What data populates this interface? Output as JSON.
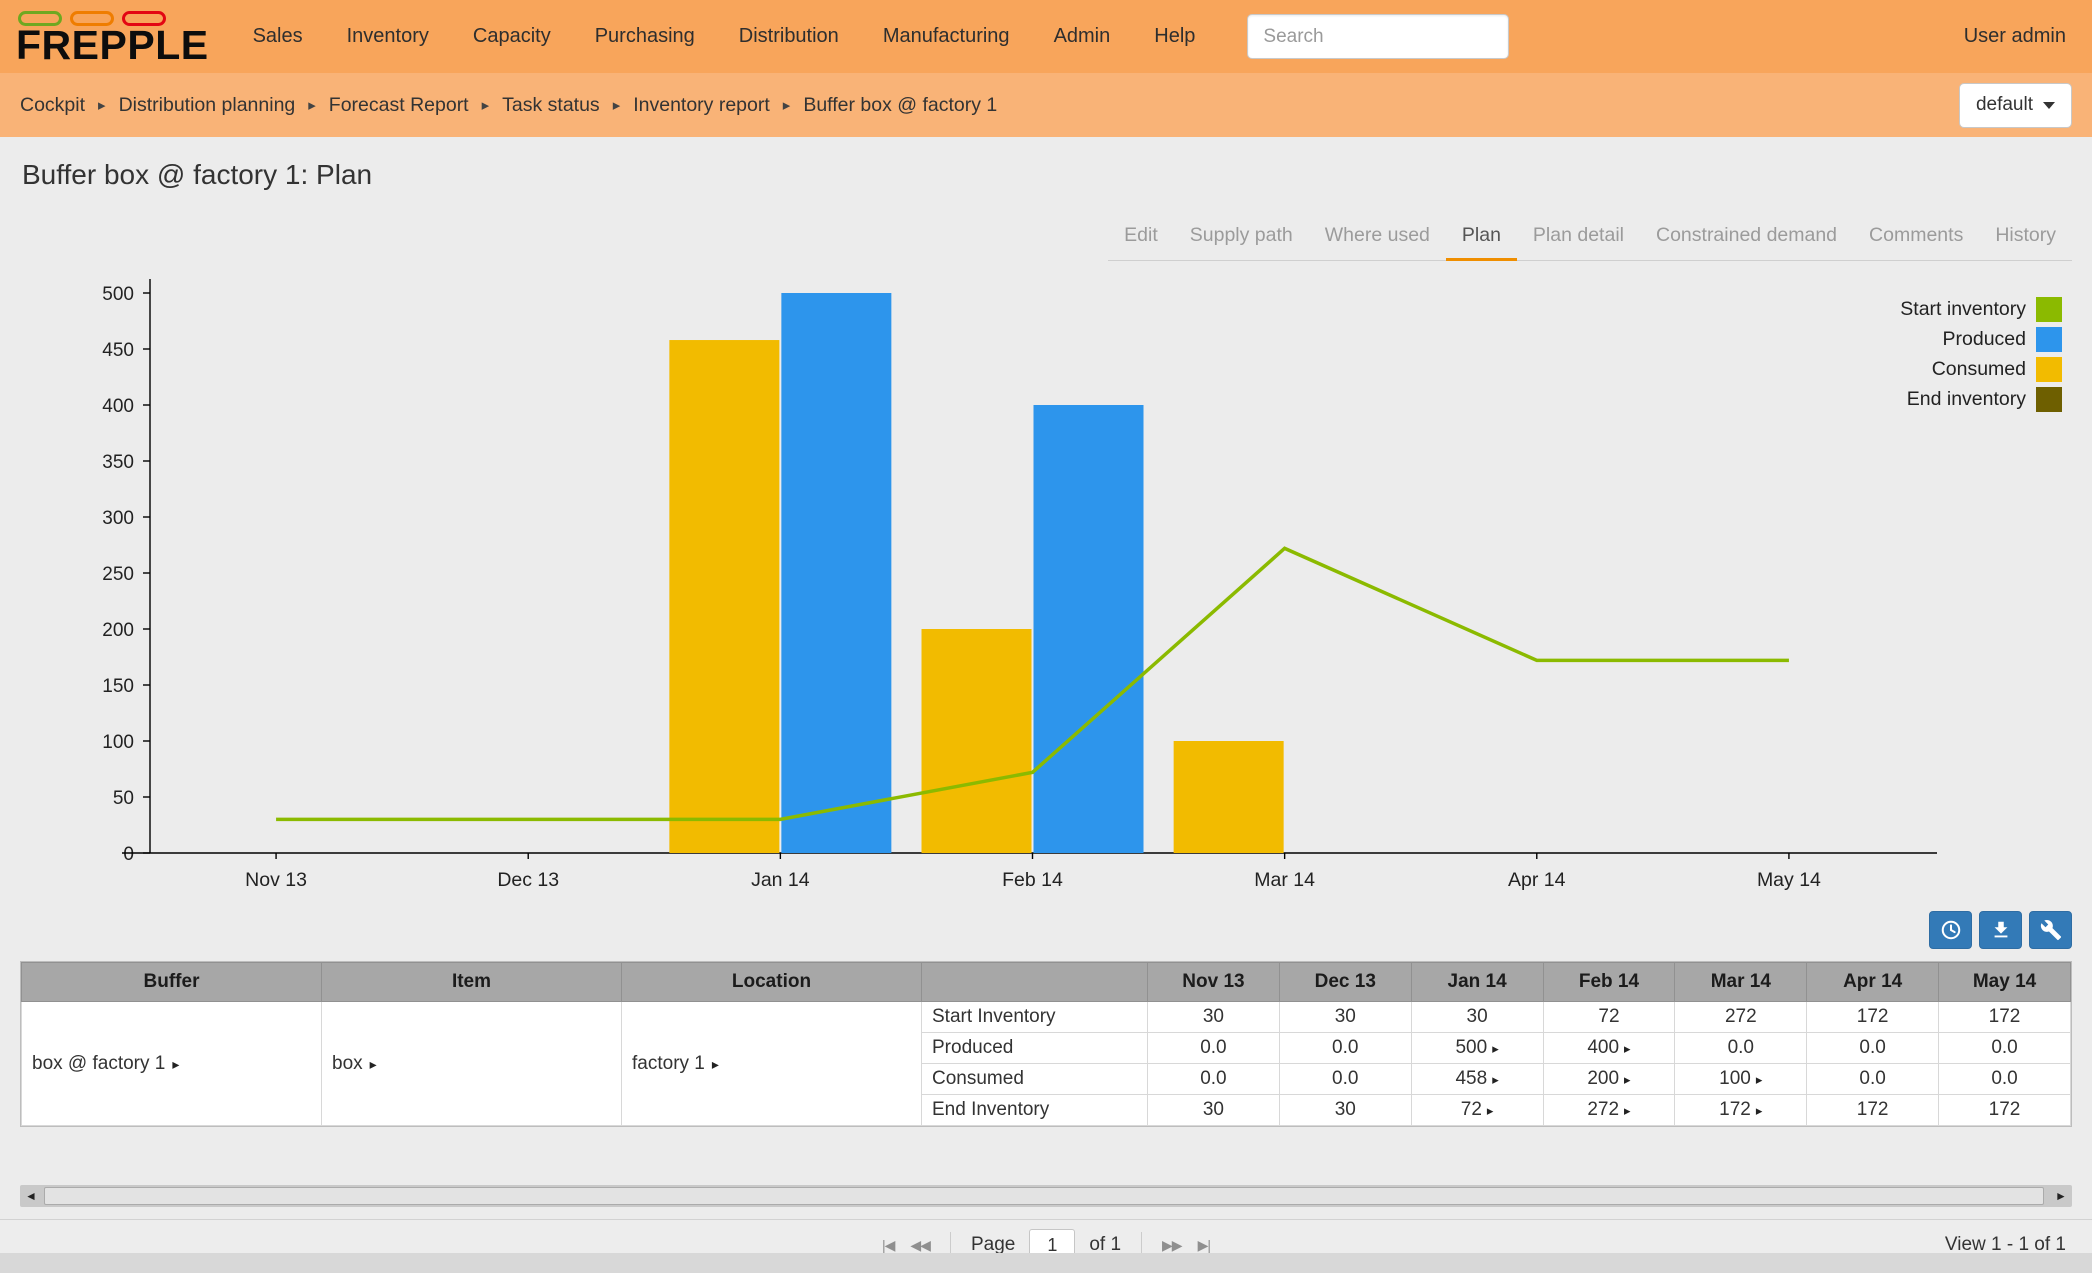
{
  "brand": {
    "name": "FREPPLE"
  },
  "navbar": {
    "items": [
      "Sales",
      "Inventory",
      "Capacity",
      "Purchasing",
      "Distribution",
      "Manufacturing",
      "Admin",
      "Help"
    ],
    "search_placeholder": "Search",
    "user": "User admin"
  },
  "breadcrumb": {
    "items": [
      "Cockpit",
      "Distribution planning",
      "Forecast Report",
      "Task status",
      "Inventory report",
      "Buffer box @ factory 1"
    ],
    "view_selector": "default"
  },
  "page": {
    "title": "Buffer box @ factory 1: Plan"
  },
  "tabs": {
    "items": [
      "Edit",
      "Supply path",
      "Where used",
      "Plan",
      "Plan detail",
      "Constrained demand",
      "Comments",
      "History"
    ],
    "active": "Plan"
  },
  "chart_data": {
    "type": "combo-bar-line",
    "title": "",
    "xlabel": "",
    "ylabel": "",
    "categories": [
      "Nov 13",
      "Dec 13",
      "Jan 14",
      "Feb 14",
      "Mar 14",
      "Apr 14",
      "May 14"
    ],
    "series": [
      {
        "name": "Start inventory",
        "type": "line",
        "color": "#8BBA00",
        "values": [
          30,
          30,
          30,
          72,
          272,
          172,
          172
        ],
        "visible": true
      },
      {
        "name": "Produced",
        "type": "bar",
        "color": "#2D95EC",
        "bar_slot": 1,
        "values": [
          0,
          0,
          500,
          400,
          0,
          0,
          0
        ]
      },
      {
        "name": "Consumed",
        "type": "bar",
        "color": "#F2BB00",
        "bar_slot": 0,
        "values": [
          0,
          0,
          458,
          200,
          100,
          0,
          0
        ]
      },
      {
        "name": "End inventory",
        "type": "line",
        "color": "#6E5F00",
        "values": [
          30,
          30,
          72,
          272,
          172,
          172,
          172
        ],
        "visible": false
      }
    ],
    "ylim": [
      0,
      500
    ],
    "ytick_step": 50,
    "legend_position": "top-right",
    "grid": false
  },
  "toolbar": {
    "buttons": [
      {
        "name": "time-buckets",
        "icon": "clock"
      },
      {
        "name": "download",
        "icon": "download"
      },
      {
        "name": "settings",
        "icon": "wrench"
      }
    ]
  },
  "table": {
    "headers": [
      "Buffer",
      "Item",
      "Location",
      "",
      "Nov 13",
      "Dec 13",
      "Jan 14",
      "Feb 14",
      "Mar 14",
      "Apr 14",
      "May 14"
    ],
    "row": {
      "buffer": "box @ factory 1",
      "item": "box",
      "location": "factory 1",
      "metrics": [
        {
          "label": "Start Inventory",
          "values": [
            "30",
            "30",
            "30",
            "72",
            "272",
            "172",
            "172"
          ],
          "drill": [
            false,
            false,
            false,
            false,
            false,
            false,
            false
          ]
        },
        {
          "label": "Produced",
          "values": [
            "0.0",
            "0.0",
            "500",
            "400",
            "0.0",
            "0.0",
            "0.0"
          ],
          "drill": [
            false,
            false,
            true,
            true,
            false,
            false,
            false
          ]
        },
        {
          "label": "Consumed",
          "values": [
            "0.0",
            "0.0",
            "458",
            "200",
            "100",
            "0.0",
            "0.0"
          ],
          "drill": [
            false,
            false,
            true,
            true,
            true,
            false,
            false
          ]
        },
        {
          "label": "End Inventory",
          "values": [
            "30",
            "30",
            "72",
            "272",
            "172",
            "172",
            "172"
          ],
          "drill": [
            false,
            false,
            true,
            true,
            true,
            false,
            false
          ]
        }
      ]
    }
  },
  "pagination": {
    "icons_left": [
      {
        "name": "first-page",
        "glyph": "|◀"
      },
      {
        "name": "previous-page",
        "glyph": "◀◀"
      }
    ],
    "icons_right": [
      {
        "name": "next-page",
        "glyph": "▶▶"
      },
      {
        "name": "last-page",
        "glyph": "▶|"
      }
    ],
    "page_label": "Page",
    "page_value": "1",
    "of_label": "of 1",
    "view_label": "View 1 - 1 of 1"
  }
}
